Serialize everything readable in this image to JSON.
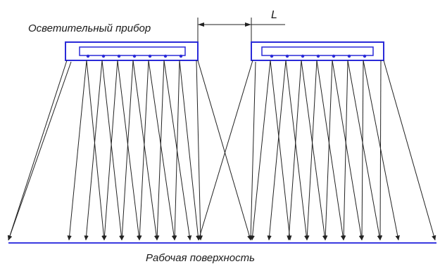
{
  "labels": {
    "fixture": "Осветительный прибор",
    "surface": "Рабочая поверхность",
    "spacing": "L"
  },
  "colors": {
    "fixture_outline": "#2a2ad8",
    "surface_line": "#3a3ae0",
    "rays": "#222222",
    "dimension": "#222222"
  }
}
